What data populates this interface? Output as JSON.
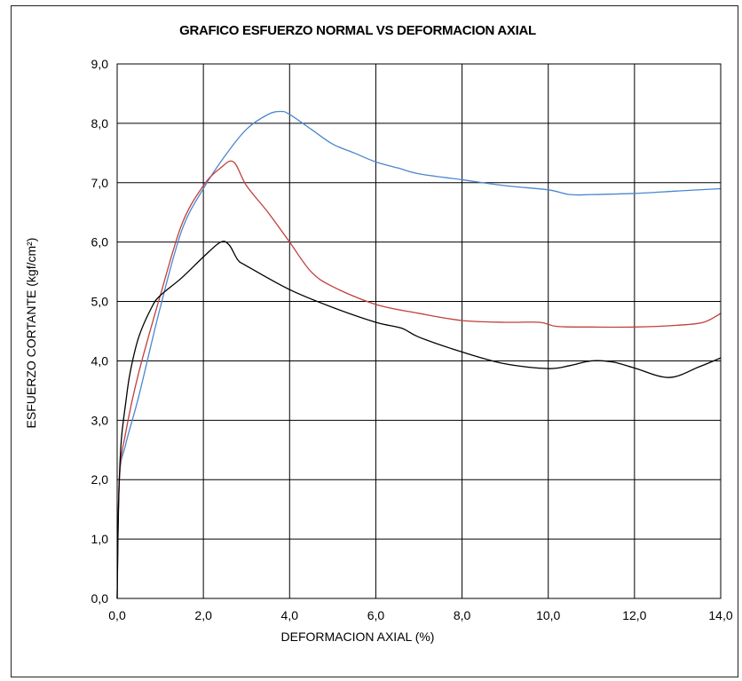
{
  "chart_data": {
    "type": "line",
    "title": "GRAFICO ESFUERZO NORMAL VS DEFORMACION AXIAL",
    "xlabel": "DEFORMACION AXIAL (%)",
    "ylabel": "ESFUERZO CORTANTE (kgf/cm²)",
    "xlim": [
      0,
      14
    ],
    "ylim": [
      0,
      9
    ],
    "xticks": [
      "0,0",
      "2,0",
      "4,0",
      "6,0",
      "8,0",
      "10,0",
      "12,0",
      "14,0"
    ],
    "yticks": [
      "0,0",
      "1,0",
      "2,0",
      "3,0",
      "4,0",
      "5,0",
      "6,0",
      "7,0",
      "8,0",
      "9,0"
    ],
    "grid": true,
    "series": [
      {
        "color": "#4a86d0",
        "x": [
          0,
          0.05,
          0.2,
          0.5,
          1.0,
          1.5,
          2.0,
          2.5,
          3.0,
          3.5,
          3.8,
          4.0,
          4.5,
          5.0,
          5.5,
          6.0,
          6.5,
          7.0,
          8.0,
          9.0,
          10.0,
          10.5,
          11.0,
          12.0,
          13.0,
          14.0
        ],
        "y": [
          0,
          2.0,
          2.6,
          3.4,
          4.9,
          6.2,
          6.9,
          7.45,
          7.9,
          8.15,
          8.2,
          8.15,
          7.9,
          7.65,
          7.5,
          7.35,
          7.25,
          7.15,
          7.05,
          6.95,
          6.88,
          6.8,
          6.8,
          6.82,
          6.86,
          6.9
        ]
      },
      {
        "color": "#c0403a",
        "x": [
          0,
          0.05,
          0.2,
          0.5,
          1.0,
          1.5,
          2.0,
          2.4,
          2.7,
          3.0,
          3.5,
          4.0,
          4.5,
          5.0,
          6.0,
          7.0,
          8.0,
          9.0,
          9.8,
          10.2,
          11.0,
          12.0,
          13.0,
          13.6,
          14.0
        ],
        "y": [
          0,
          2.0,
          2.8,
          3.8,
          5.1,
          6.3,
          6.95,
          7.25,
          7.35,
          6.95,
          6.5,
          6.0,
          5.5,
          5.25,
          4.95,
          4.8,
          4.68,
          4.65,
          4.65,
          4.58,
          4.57,
          4.57,
          4.6,
          4.65,
          4.8
        ]
      },
      {
        "color": "#000000",
        "x": [
          0,
          0.02,
          0.05,
          0.1,
          0.2,
          0.3,
          0.5,
          0.8,
          1.0,
          1.5,
          2.0,
          2.4,
          2.6,
          2.8,
          3.0,
          4.0,
          5.0,
          6.0,
          6.6,
          7.0,
          8.0,
          9.0,
          10.0,
          10.5,
          11.0,
          11.5,
          12.0,
          12.8,
          13.5,
          14.0
        ],
        "y": [
          0,
          1.1,
          2.0,
          2.7,
          3.3,
          3.8,
          4.4,
          4.9,
          5.1,
          5.4,
          5.75,
          6.0,
          5.95,
          5.7,
          5.6,
          5.2,
          4.9,
          4.65,
          4.55,
          4.4,
          4.15,
          3.95,
          3.87,
          3.92,
          4.0,
          3.98,
          3.88,
          3.72,
          3.9,
          4.05
        ]
      }
    ]
  }
}
